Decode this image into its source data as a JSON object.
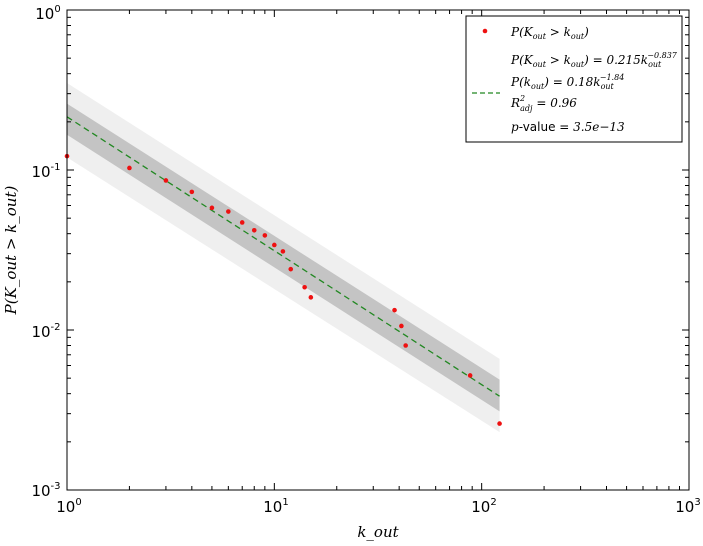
{
  "chart_data": {
    "type": "scatter",
    "scale": {
      "x": "log",
      "y": "log"
    },
    "xlim": [
      1,
      1000
    ],
    "ylim": [
      0.001,
      1
    ],
    "xlabel": "k_out",
    "ylabel": "P(K_out > k_out)",
    "x_ticks": [
      {
        "value": 1,
        "base": "10",
        "exp": "0"
      },
      {
        "value": 10,
        "base": "10",
        "exp": "1"
      },
      {
        "value": 100,
        "base": "10",
        "exp": "2"
      },
      {
        "value": 1000,
        "base": "10",
        "exp": "3"
      }
    ],
    "y_ticks": [
      {
        "value": 0.001,
        "base": "10",
        "exp": "-3"
      },
      {
        "value": 0.01,
        "base": "10",
        "exp": "-2"
      },
      {
        "value": 0.1,
        "base": "10",
        "exp": "-1"
      },
      {
        "value": 1,
        "base": "10",
        "exp": "0"
      }
    ],
    "points": {
      "name": "P(K_out > k_out)",
      "color": "#ee1111",
      "x": [
        1,
        2,
        3,
        4,
        5,
        6,
        7,
        8,
        9,
        10,
        11,
        12,
        14,
        15,
        38,
        41,
        43,
        88,
        122
      ],
      "y": [
        0.122,
        0.103,
        0.086,
        0.073,
        0.058,
        0.055,
        0.047,
        0.042,
        0.039,
        0.034,
        0.031,
        0.024,
        0.0185,
        0.016,
        0.0133,
        0.0106,
        0.008,
        0.0052,
        0.0026
      ]
    },
    "fit": {
      "name": "P(k_out) = 0.18 k_out^-1.84",
      "color": "#228822",
      "coef": 0.215,
      "exponent": -0.837,
      "x_range": [
        1,
        122
      ],
      "ci_inner": [
        [
          1,
          0.26,
          0.166
        ],
        [
          122,
          0.0049,
          0.0031
        ]
      ],
      "ci_outer": [
        [
          1,
          0.35,
          0.12
        ],
        [
          122,
          0.0066,
          0.0023
        ]
      ]
    },
    "legend": {
      "position": "top-right",
      "scatter_label": {
        "main": "P(K",
        "sub1": "out",
        "mid": " > k",
        "sub2": "out",
        "end": ")"
      },
      "eq_cdf": {
        "main": "P(K",
        "sub1": "out",
        "mid": " > k",
        "sub2": "out",
        "rest": ") = 0.215k",
        "sub3": "out",
        "sup": "−0.837"
      },
      "eq_pdf": {
        "main": "P(k",
        "sub1": "out",
        "rest": ") = 0.18k",
        "sub2": "out",
        "sup": "−1.84"
      },
      "r2": {
        "main": "R",
        "sup": "2",
        "sub": "adj",
        "rest": " = 0.96"
      },
      "pvalue": {
        "p": "p",
        "dash": "-value",
        "rest": " = 3.5e−13"
      }
    },
    "title": ""
  }
}
